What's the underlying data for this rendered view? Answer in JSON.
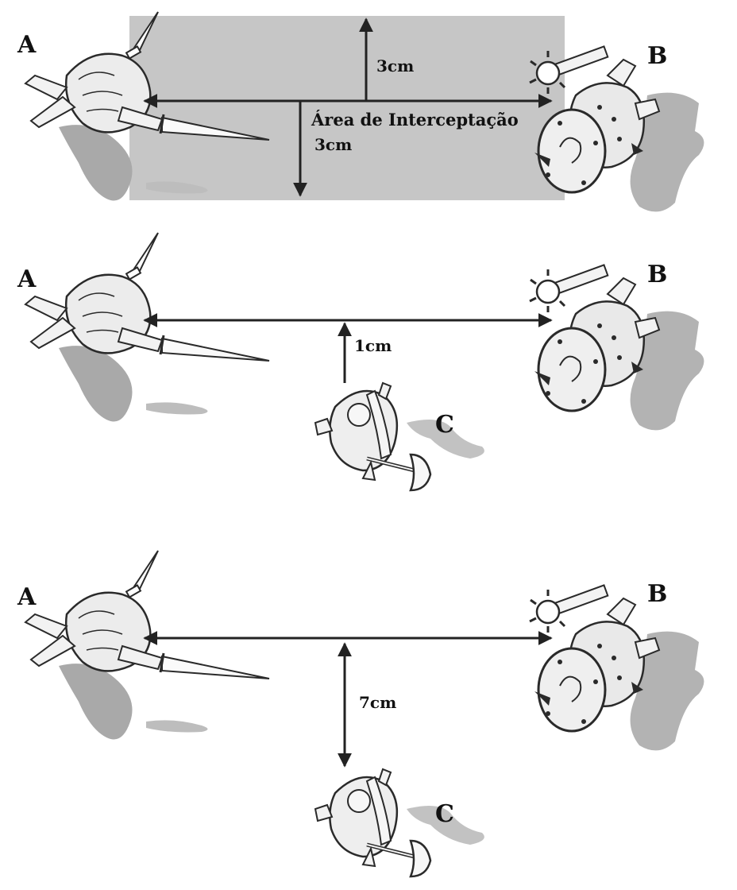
{
  "figure": {
    "label_a": "A",
    "label_b": "B",
    "label_c": "C",
    "panels": [
      {
        "id": "panel-1",
        "area_label": "Área de Interceptação",
        "dim_up": "3cm",
        "dim_down": "3cm"
      },
      {
        "id": "panel-2",
        "dim": "1cm"
      },
      {
        "id": "panel-3",
        "dim": "7cm"
      }
    ]
  },
  "colors": {
    "area_fill": "#c6c6c6",
    "arrow": "#222222",
    "ink": "#2a2a2a",
    "shadow": "#a9a9a9"
  },
  "icons": [
    "swordsman-miniature-icon",
    "mace-warrior-miniature-icon",
    "axe-dwarf-miniature-icon"
  ]
}
